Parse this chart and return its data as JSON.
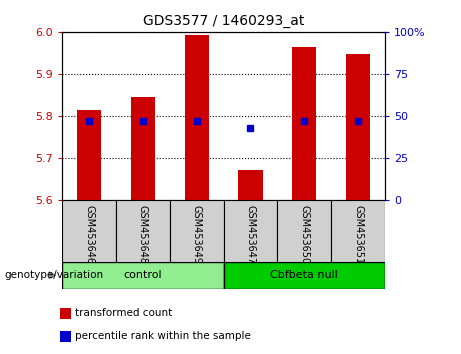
{
  "title": "GDS3577 / 1460293_at",
  "samples": [
    "GSM453646",
    "GSM453648",
    "GSM453649",
    "GSM453647",
    "GSM453650",
    "GSM453651"
  ],
  "bar_values": [
    5.815,
    5.845,
    5.993,
    5.672,
    5.963,
    5.948
  ],
  "blue_dot_values": [
    5.787,
    5.787,
    5.787,
    5.772,
    5.787,
    5.787
  ],
  "y_min": 5.6,
  "y_max": 6.0,
  "y_ticks": [
    5.6,
    5.7,
    5.8,
    5.9,
    6.0
  ],
  "right_y_labels": [
    "0",
    "25",
    "50",
    "75",
    "100%"
  ],
  "right_y_tick_positions": [
    5.6,
    5.7,
    5.8,
    5.9,
    6.0
  ],
  "bar_color": "#cc0000",
  "dot_color": "#0000cc",
  "groups": [
    {
      "label": "control",
      "indices": [
        0,
        1,
        2
      ],
      "color": "#90ee90"
    },
    {
      "label": "Cbfbeta null",
      "indices": [
        3,
        4,
        5
      ],
      "color": "#00cc00"
    }
  ],
  "bar_bottom": 5.6,
  "legend_items": [
    {
      "label": "transformed count",
      "color": "#cc0000"
    },
    {
      "label": "percentile rank within the sample",
      "color": "#0000cc"
    }
  ],
  "genotype_label": "genotype/variation",
  "left_label_color": "#cc0000",
  "right_label_color": "#0000cc",
  "tick_label_gray": "#c8c8c8"
}
